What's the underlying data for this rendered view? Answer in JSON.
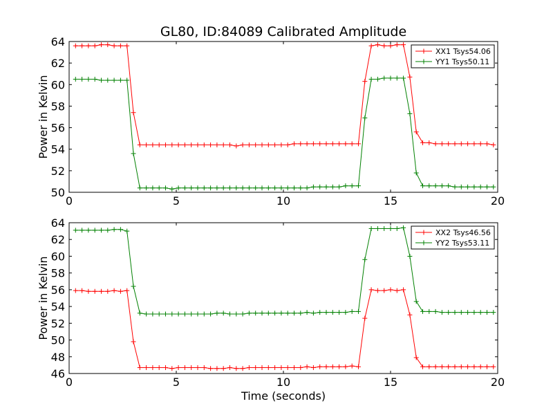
{
  "chart_data": [
    {
      "type": "line",
      "title": "GL80, ID:84089 Calibrated Amplitude",
      "xlabel": "",
      "ylabel": "Power in Kelvin",
      "xlim": [
        0,
        20
      ],
      "ylim": [
        50,
        64
      ],
      "xticks": [
        0,
        5,
        10,
        15,
        20
      ],
      "yticks": [
        50,
        52,
        54,
        56,
        58,
        60,
        62,
        64
      ],
      "legend_position": "top-right",
      "x": [
        0.3,
        0.6,
        0.9,
        1.2,
        1.5,
        1.8,
        2.1,
        2.4,
        2.7,
        3.0,
        3.3,
        3.6,
        3.9,
        4.2,
        4.5,
        4.8,
        5.1,
        5.4,
        5.7,
        6.0,
        6.3,
        6.6,
        6.9,
        7.2,
        7.5,
        7.8,
        8.1,
        8.4,
        8.7,
        9.0,
        9.3,
        9.6,
        9.9,
        10.2,
        10.5,
        10.8,
        11.1,
        11.4,
        11.7,
        12.0,
        12.3,
        12.6,
        12.9,
        13.2,
        13.5,
        13.8,
        14.1,
        14.4,
        14.7,
        15.0,
        15.3,
        15.6,
        15.9,
        16.2,
        16.5,
        16.8,
        17.1,
        17.4,
        17.7,
        18.0,
        18.3,
        18.6,
        18.9,
        19.2,
        19.5,
        19.8
      ],
      "series": [
        {
          "name": "XX1 Tsys54.06",
          "color": "#ff0000",
          "values": [
            63.6,
            63.6,
            63.6,
            63.6,
            63.7,
            63.7,
            63.6,
            63.6,
            63.6,
            57.4,
            54.4,
            54.4,
            54.4,
            54.4,
            54.4,
            54.4,
            54.4,
            54.4,
            54.4,
            54.4,
            54.4,
            54.4,
            54.4,
            54.4,
            54.4,
            54.3,
            54.4,
            54.4,
            54.4,
            54.4,
            54.4,
            54.4,
            54.4,
            54.4,
            54.5,
            54.5,
            54.5,
            54.5,
            54.5,
            54.5,
            54.5,
            54.5,
            54.5,
            54.5,
            54.5,
            60.3,
            63.6,
            63.7,
            63.6,
            63.6,
            63.7,
            63.7,
            60.7,
            55.6,
            54.6,
            54.6,
            54.5,
            54.5,
            54.5,
            54.5,
            54.5,
            54.5,
            54.5,
            54.5,
            54.5,
            54.4
          ]
        },
        {
          "name": "YY1 Tsys50.11",
          "color": "#008000",
          "values": [
            60.5,
            60.5,
            60.5,
            60.5,
            60.4,
            60.4,
            60.4,
            60.4,
            60.4,
            53.6,
            50.4,
            50.4,
            50.4,
            50.4,
            50.4,
            50.3,
            50.4,
            50.4,
            50.4,
            50.4,
            50.4,
            50.4,
            50.4,
            50.4,
            50.4,
            50.4,
            50.4,
            50.4,
            50.4,
            50.4,
            50.4,
            50.4,
            50.4,
            50.4,
            50.4,
            50.4,
            50.4,
            50.5,
            50.5,
            50.5,
            50.5,
            50.5,
            50.6,
            50.6,
            50.6,
            56.9,
            60.5,
            60.5,
            60.6,
            60.6,
            60.6,
            60.6,
            57.3,
            51.8,
            50.6,
            50.6,
            50.6,
            50.6,
            50.6,
            50.5,
            50.5,
            50.5,
            50.5,
            50.5,
            50.5,
            50.5
          ]
        }
      ]
    },
    {
      "type": "line",
      "title": "",
      "xlabel": "Time (seconds)",
      "ylabel": "Power in Kelvin",
      "xlim": [
        0,
        20
      ],
      "ylim": [
        46,
        64
      ],
      "xticks": [
        0,
        5,
        10,
        15,
        20
      ],
      "yticks": [
        46,
        48,
        50,
        52,
        54,
        56,
        58,
        60,
        62,
        64
      ],
      "legend_position": "top-right",
      "x": [
        0.3,
        0.6,
        0.9,
        1.2,
        1.5,
        1.8,
        2.1,
        2.4,
        2.7,
        3.0,
        3.3,
        3.6,
        3.9,
        4.2,
        4.5,
        4.8,
        5.1,
        5.4,
        5.7,
        6.0,
        6.3,
        6.6,
        6.9,
        7.2,
        7.5,
        7.8,
        8.1,
        8.4,
        8.7,
        9.0,
        9.3,
        9.6,
        9.9,
        10.2,
        10.5,
        10.8,
        11.1,
        11.4,
        11.7,
        12.0,
        12.3,
        12.6,
        12.9,
        13.2,
        13.5,
        13.8,
        14.1,
        14.4,
        14.7,
        15.0,
        15.3,
        15.6,
        15.9,
        16.2,
        16.5,
        16.8,
        17.1,
        17.4,
        17.7,
        18.0,
        18.3,
        18.6,
        18.9,
        19.2,
        19.5,
        19.8
      ],
      "series": [
        {
          "name": "XX2 Tsys46.56",
          "color": "#ff0000",
          "values": [
            55.9,
            55.9,
            55.8,
            55.8,
            55.8,
            55.8,
            55.9,
            55.8,
            55.9,
            49.8,
            46.7,
            46.7,
            46.7,
            46.7,
            46.7,
            46.6,
            46.7,
            46.7,
            46.7,
            46.7,
            46.7,
            46.6,
            46.6,
            46.6,
            46.7,
            46.6,
            46.6,
            46.7,
            46.7,
            46.7,
            46.7,
            46.7,
            46.7,
            46.7,
            46.7,
            46.7,
            46.8,
            46.7,
            46.8,
            46.8,
            46.8,
            46.8,
            46.8,
            46.9,
            46.8,
            52.6,
            56.0,
            55.9,
            55.9,
            56.0,
            55.9,
            56.0,
            53.0,
            47.9,
            46.8,
            46.8,
            46.8,
            46.8,
            46.8,
            46.8,
            46.8,
            46.8,
            46.8,
            46.8,
            46.8,
            46.8
          ]
        },
        {
          "name": "YY2 Tsys53.11",
          "color": "#008000",
          "values": [
            63.1,
            63.1,
            63.1,
            63.1,
            63.1,
            63.1,
            63.2,
            63.2,
            63.0,
            56.4,
            53.2,
            53.1,
            53.1,
            53.1,
            53.1,
            53.1,
            53.1,
            53.1,
            53.1,
            53.1,
            53.1,
            53.1,
            53.2,
            53.2,
            53.1,
            53.1,
            53.1,
            53.2,
            53.2,
            53.2,
            53.2,
            53.2,
            53.2,
            53.2,
            53.2,
            53.2,
            53.3,
            53.2,
            53.3,
            53.3,
            53.3,
            53.3,
            53.3,
            53.4,
            53.4,
            59.6,
            63.3,
            63.3,
            63.3,
            63.3,
            63.3,
            63.4,
            60.0,
            54.6,
            53.4,
            53.4,
            53.4,
            53.3,
            53.3,
            53.3,
            53.3,
            53.3,
            53.3,
            53.3,
            53.3,
            53.3
          ]
        }
      ]
    }
  ]
}
